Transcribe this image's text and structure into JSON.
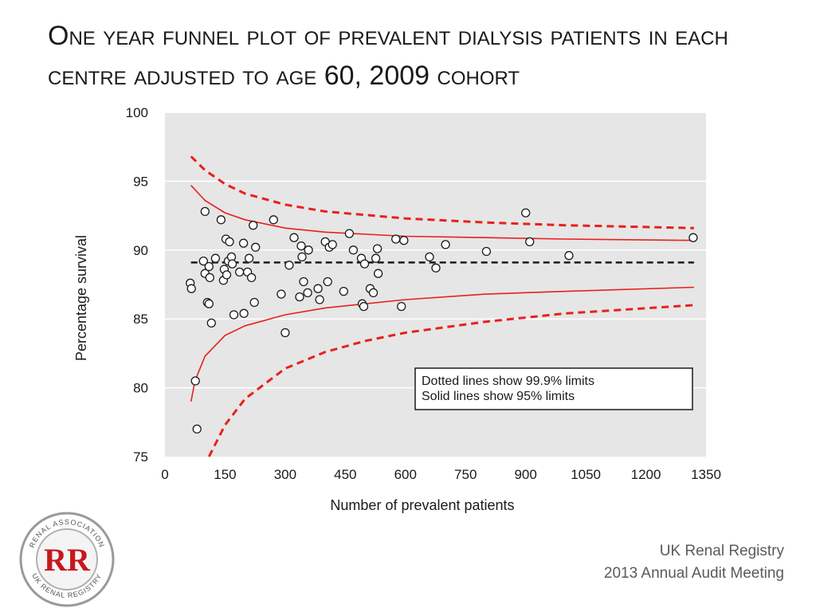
{
  "slide": {
    "title": "One year funnel plot of prevalent dialysis patients in each centre adjusted to age 60, 2009 cohort",
    "footer_line1": "UK Renal Registry",
    "footer_line2": "2013 Annual Audit Meeting"
  },
  "logo": {
    "icon": "renal-association-logo-icon",
    "top_text": "RENAL ASSOCIATION",
    "bottom_text": "UK RENAL REGISTRY",
    "monogram": "RR"
  },
  "chart_data": {
    "type": "scatter",
    "title": "",
    "xlabel": "Number of prevalent patients",
    "ylabel": "Percentage survival",
    "xlim": [
      0,
      1350
    ],
    "ylim": [
      75,
      100
    ],
    "xticks": [
      0,
      150,
      300,
      450,
      600,
      750,
      900,
      1050,
      1200,
      1350
    ],
    "yticks": [
      75,
      80,
      85,
      90,
      95,
      100
    ],
    "grid": "horizontal",
    "background": "#e6e6e6",
    "mean_line": {
      "y": 89.1,
      "style": "dashed",
      "color": "#1a1a1a"
    },
    "limits": {
      "color": "#e8201c",
      "x_range": [
        65,
        1320
      ],
      "p95_upper": [
        [
          65,
          94.7
        ],
        [
          100,
          93.6
        ],
        [
          150,
          92.7
        ],
        [
          200,
          92.2
        ],
        [
          300,
          91.6
        ],
        [
          400,
          91.3
        ],
        [
          600,
          91.0
        ],
        [
          800,
          90.9
        ],
        [
          1000,
          90.8
        ],
        [
          1320,
          90.7
        ]
      ],
      "p95_lower": [
        [
          65,
          79.0
        ],
        [
          75,
          80.5
        ],
        [
          100,
          82.3
        ],
        [
          150,
          83.8
        ],
        [
          200,
          84.5
        ],
        [
          300,
          85.3
        ],
        [
          400,
          85.8
        ],
        [
          600,
          86.4
        ],
        [
          800,
          86.8
        ],
        [
          1000,
          87.0
        ],
        [
          1320,
          87.3
        ]
      ],
      "p999_upper": [
        [
          65,
          96.8
        ],
        [
          100,
          95.8
        ],
        [
          150,
          94.8
        ],
        [
          200,
          94.1
        ],
        [
          300,
          93.3
        ],
        [
          400,
          92.8
        ],
        [
          600,
          92.3
        ],
        [
          800,
          92.0
        ],
        [
          1000,
          91.8
        ],
        [
          1320,
          91.6
        ]
      ],
      "p999_lower": [
        [
          110,
          75.0
        ],
        [
          150,
          77.3
        ],
        [
          200,
          79.2
        ],
        [
          300,
          81.4
        ],
        [
          400,
          82.6
        ],
        [
          500,
          83.4
        ],
        [
          600,
          84.0
        ],
        [
          800,
          84.8
        ],
        [
          1000,
          85.4
        ],
        [
          1320,
          86.0
        ]
      ]
    },
    "legend": {
      "position": "bottom-right",
      "items": [
        "Dotted lines show 99.9% limits",
        "Solid lines show 95% limits"
      ]
    },
    "points": [
      [
        63,
        87.6
      ],
      [
        66,
        87.2
      ],
      [
        76,
        80.5
      ],
      [
        80,
        77.0
      ],
      [
        96,
        89.2
      ],
      [
        100,
        92.8
      ],
      [
        100,
        88.3
      ],
      [
        106,
        86.2
      ],
      [
        110,
        86.1
      ],
      [
        110,
        88.8
      ],
      [
        112,
        88.0
      ],
      [
        116,
        84.7
      ],
      [
        126,
        89.4
      ],
      [
        140,
        92.2
      ],
      [
        146,
        87.8
      ],
      [
        148,
        88.6
      ],
      [
        152,
        90.8
      ],
      [
        154,
        88.2
      ],
      [
        158,
        89.2
      ],
      [
        161,
        90.6
      ],
      [
        166,
        89.5
      ],
      [
        168,
        89.0
      ],
      [
        172,
        85.3
      ],
      [
        186,
        88.4
      ],
      [
        196,
        90.5
      ],
      [
        197,
        85.4
      ],
      [
        206,
        88.4
      ],
      [
        210,
        89.4
      ],
      [
        216,
        88.0
      ],
      [
        220,
        91.8
      ],
      [
        223,
        86.2
      ],
      [
        226,
        90.2
      ],
      [
        271,
        92.2
      ],
      [
        290,
        86.8
      ],
      [
        300,
        84.0
      ],
      [
        310,
        88.9
      ],
      [
        322,
        90.9
      ],
      [
        336,
        86.6
      ],
      [
        340,
        90.3
      ],
      [
        342,
        89.5
      ],
      [
        346,
        87.7
      ],
      [
        356,
        86.9
      ],
      [
        358,
        90.0
      ],
      [
        382,
        87.2
      ],
      [
        386,
        86.4
      ],
      [
        400,
        90.6
      ],
      [
        406,
        87.7
      ],
      [
        410,
        90.2
      ],
      [
        418,
        90.4
      ],
      [
        446,
        87.0
      ],
      [
        460,
        91.2
      ],
      [
        470,
        90.0
      ],
      [
        490,
        89.4
      ],
      [
        492,
        86.1
      ],
      [
        496,
        85.9
      ],
      [
        498,
        89.0
      ],
      [
        512,
        87.2
      ],
      [
        520,
        86.9
      ],
      [
        526,
        89.4
      ],
      [
        530,
        90.1
      ],
      [
        532,
        88.3
      ],
      [
        576,
        90.8
      ],
      [
        590,
        85.9
      ],
      [
        596,
        90.7
      ],
      [
        660,
        89.5
      ],
      [
        676,
        88.7
      ],
      [
        700,
        90.4
      ],
      [
        802,
        89.9
      ],
      [
        900,
        92.7
      ],
      [
        910,
        90.6
      ],
      [
        1008,
        89.6
      ],
      [
        1318,
        90.9
      ]
    ]
  }
}
